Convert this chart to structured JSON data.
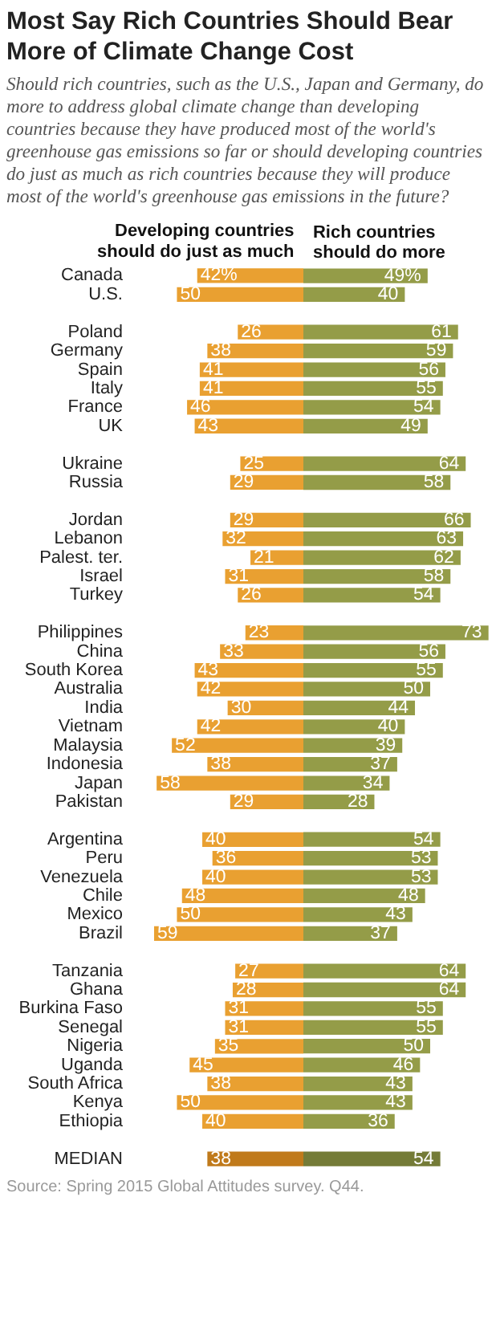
{
  "chart_data": [
    {
      "type": "bar",
      "orientation": "horizontal",
      "tick_labels": "y",
      "title": "Most Say Rich Countries Should Bear More of Climate Change Cost",
      "subtitle": "Should rich countries, such as the U.S., Japan and Germany, do more to address global climate change than developing countries because they have produced most of the world's greenhouse gas emissions so far or should developing countries do just as much as rich countries because they will produce most of the world's greenhouse gas emissions in the future?",
      "annotations": [
        "Source: Spring 2015 Global Attitudes survey. Q44."
      ],
      "xlim": [
        59,
        0
      ],
      "categories": [
        "Canada",
        "U.S.",
        null,
        "Poland",
        "Germany",
        "Spain",
        "Italy",
        "France",
        "UK",
        null,
        "Ukraine",
        "Russia",
        null,
        "Jordan",
        "Lebanon",
        "Palest. ter.",
        "Israel",
        "Turkey",
        null,
        "Philippines",
        "China",
        "South Korea",
        "Australia",
        "India",
        "Vietnam",
        "Malaysia",
        "Indonesia",
        "Japan",
        "Pakistan",
        null,
        "Argentina",
        "Peru",
        "Venezuela",
        "Chile",
        "Mexico",
        "Brazil",
        null,
        "Tanzania",
        "Ghana",
        "Burkina Faso",
        "Senegal",
        "Nigeria",
        "Uganda",
        "South Africa",
        "Kenya",
        "Ethiopia",
        null,
        "MEDIAN"
      ],
      "series": [
        {
          "name": "Developing countries should do just as much",
          "values": [
            42,
            50,
            null,
            26,
            38,
            41,
            41,
            46,
            43,
            null,
            25,
            29,
            null,
            29,
            32,
            21,
            31,
            26,
            null,
            23,
            33,
            43,
            42,
            30,
            42,
            52,
            38,
            58,
            29,
            null,
            40,
            36,
            40,
            48,
            50,
            59,
            null,
            27,
            28,
            31,
            31,
            35,
            45,
            38,
            50,
            40,
            null,
            38
          ],
          "value_labels": [
            "42%",
            "50",
            null,
            "26",
            "38",
            "41",
            "41",
            "46",
            "43",
            null,
            "25",
            "29",
            null,
            "29",
            "32",
            "21",
            "31",
            "26",
            null,
            "23",
            "33",
            "43",
            "42",
            "30",
            "42",
            "52",
            "38",
            "58",
            "29",
            null,
            "40",
            "36",
            "40",
            "48",
            "50",
            "59",
            null,
            "27",
            "28",
            "31",
            "31",
            "35",
            "45",
            "38",
            "50",
            "40",
            null,
            "38"
          ],
          "colors": [
            "#e9a031",
            "#e9a031",
            null,
            "#e9a031",
            "#e9a031",
            "#e9a031",
            "#e9a031",
            "#e9a031",
            "#e9a031",
            null,
            "#e9a031",
            "#e9a031",
            null,
            "#e9a031",
            "#e9a031",
            "#e9a031",
            "#e9a031",
            "#e9a031",
            null,
            "#e9a031",
            "#e9a031",
            "#e9a031",
            "#e9a031",
            "#e9a031",
            "#e9a031",
            "#e9a031",
            "#e9a031",
            "#e9a031",
            "#e9a031",
            null,
            "#e9a031",
            "#e9a031",
            "#e9a031",
            "#e9a031",
            "#e9a031",
            "#e9a031",
            null,
            "#e9a031",
            "#e9a031",
            "#e9a031",
            "#e9a031",
            "#e9a031",
            "#e9a031",
            "#e9a031",
            "#e9a031",
            "#e9a031",
            null,
            "#c07a1b"
          ]
        }
      ]
    },
    {
      "type": "bar",
      "orientation": "horizontal",
      "tick_labels": false,
      "xlim": [
        0,
        73
      ],
      "categories": [
        null,
        null,
        null,
        null,
        null,
        null,
        null,
        null,
        null,
        null,
        null,
        null,
        null,
        null,
        null,
        null,
        null,
        null,
        null,
        null,
        null,
        null,
        null,
        null,
        null,
        null,
        null,
        null,
        null,
        null,
        null,
        null,
        null,
        null,
        null,
        null,
        null,
        null,
        null,
        null,
        null,
        null,
        null,
        null,
        null,
        null,
        null,
        null
      ],
      "series": [
        {
          "name": "Rich countries should do more",
          "values": [
            49,
            40,
            null,
            61,
            59,
            56,
            55,
            54,
            49,
            null,
            64,
            58,
            null,
            66,
            63,
            62,
            58,
            54,
            null,
            73,
            56,
            55,
            50,
            44,
            40,
            39,
            37,
            34,
            28,
            null,
            54,
            53,
            53,
            48,
            43,
            37,
            null,
            64,
            64,
            55,
            55,
            50,
            46,
            43,
            43,
            36,
            null,
            54
          ],
          "value_labels": [
            "49%",
            "40",
            null,
            "61",
            "59",
            "56",
            "55",
            "54",
            "49",
            null,
            "64",
            "58",
            null,
            "66",
            "63",
            "62",
            "58",
            "54",
            null,
            "73",
            "56",
            "55",
            "50",
            "44",
            "40",
            "39",
            "37",
            "34",
            "28",
            null,
            "54",
            "53",
            "53",
            "48",
            "43",
            "37",
            null,
            "64",
            "64",
            "55",
            "55",
            "50",
            "46",
            "43",
            "43",
            "36",
            null,
            "54"
          ],
          "colors": [
            "#949c48",
            "#949c48",
            null,
            "#949c48",
            "#949c48",
            "#949c48",
            "#949c48",
            "#949c48",
            "#949c48",
            null,
            "#949c48",
            "#949c48",
            null,
            "#949c48",
            "#949c48",
            "#949c48",
            "#949c48",
            "#949c48",
            null,
            "#949c48",
            "#949c48",
            "#949c48",
            "#949c48",
            "#949c48",
            "#949c48",
            "#949c48",
            "#949c48",
            "#949c48",
            "#949c48",
            null,
            "#949c48",
            "#949c48",
            "#949c48",
            "#949c48",
            "#949c48",
            "#949c48",
            null,
            "#949c48",
            "#949c48",
            "#949c48",
            "#949c48",
            "#949c48",
            "#949c48",
            "#949c48",
            "#949c48",
            "#949c48",
            null,
            "#747b37"
          ]
        }
      ]
    }
  ]
}
